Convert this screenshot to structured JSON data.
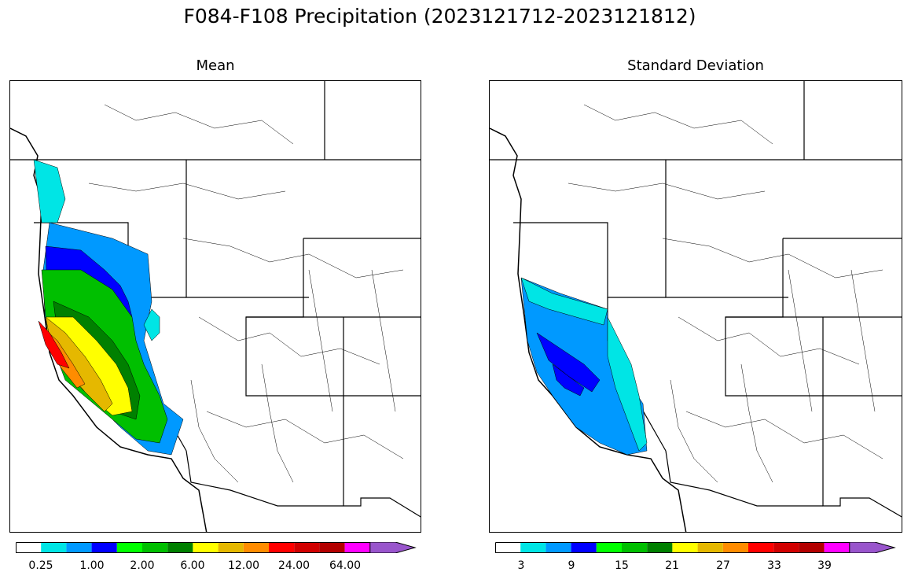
{
  "title": "F084-F108 Precipitation (2023121712-2023121812)",
  "panels": [
    {
      "title": "Mean",
      "colorbar_labels": [
        "0.25",
        "1.00",
        "2.00",
        "6.00",
        "12.00",
        "24.00",
        "64.00"
      ]
    },
    {
      "title": "Standard Deviation",
      "colorbar_labels": [
        "3",
        "9",
        "15",
        "21",
        "27",
        "33",
        "39"
      ]
    }
  ],
  "colorbar_colors": [
    "#ffffff",
    "#00e5e5",
    "#0099ff",
    "#0000ff",
    "#00ff00",
    "#00bf00",
    "#008000",
    "#ffff00",
    "#e5b800",
    "#ff8c00",
    "#ff0000",
    "#d10000",
    "#b30000",
    "#ff00ff",
    "#9955cc"
  ]
}
